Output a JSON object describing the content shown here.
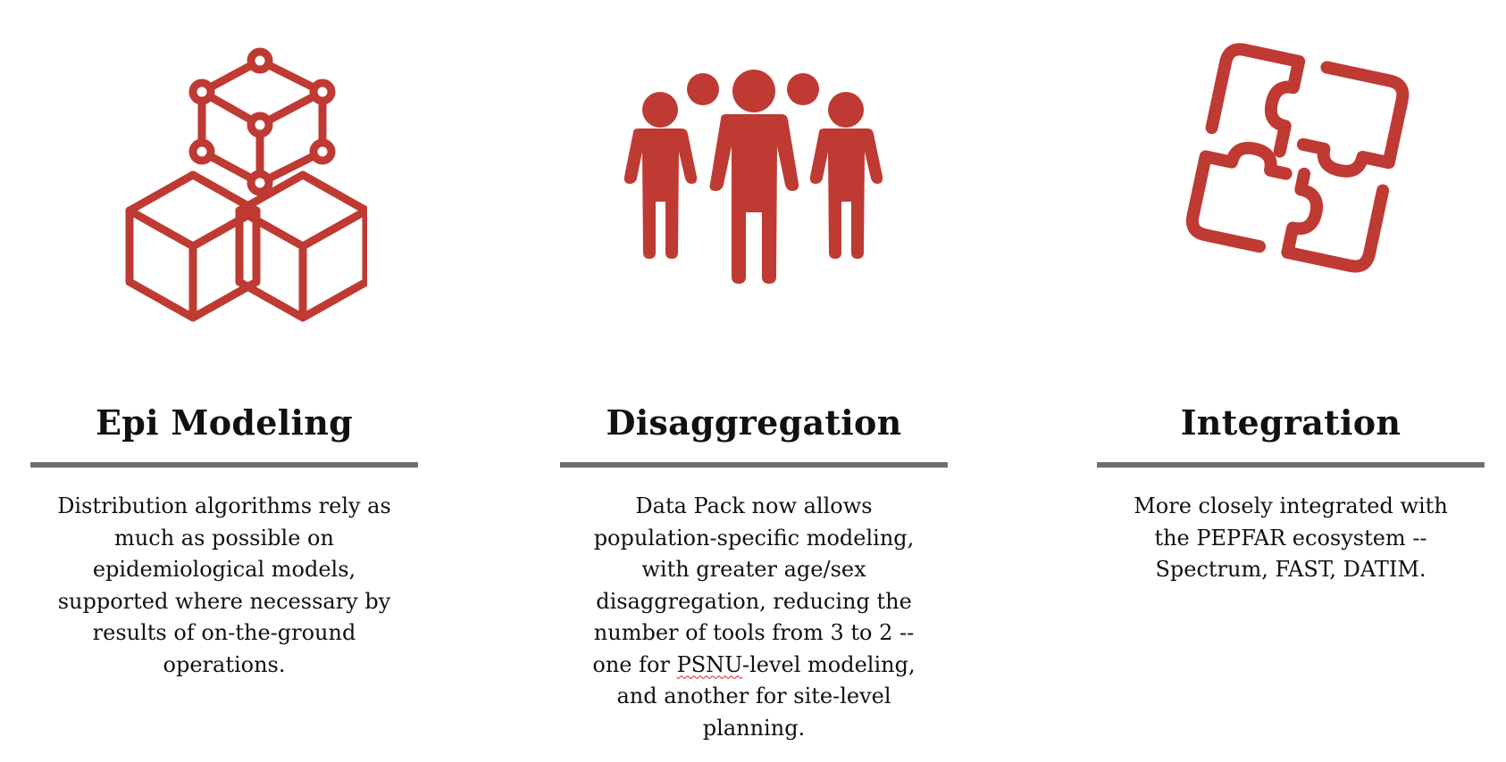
{
  "colors": {
    "icon_red": "#bf3a33",
    "divider_gray": "#6e6e6e",
    "text": "#111111"
  },
  "columns": [
    {
      "icon": "cubes-network-icon",
      "title": "Epi Modeling",
      "body": "Distribution algorithms rely as much as possible on epidemiological models, supported where necessary by results of on-the-ground operations."
    },
    {
      "icon": "people-group-icon",
      "title": "Disaggregation",
      "body_before": "Data Pack now allows population-specific modeling, with greater age/sex disaggregation, reducing the number of tools from 3 to 2 -- one for ",
      "body_flagged": "PSNU",
      "body_after": "-level modeling, and another for site-level planning."
    },
    {
      "icon": "puzzle-pieces-icon",
      "title": "Integration",
      "body": "More closely integrated with the PEPFAR ecosystem -- Spectrum, FAST, DATIM."
    }
  ]
}
